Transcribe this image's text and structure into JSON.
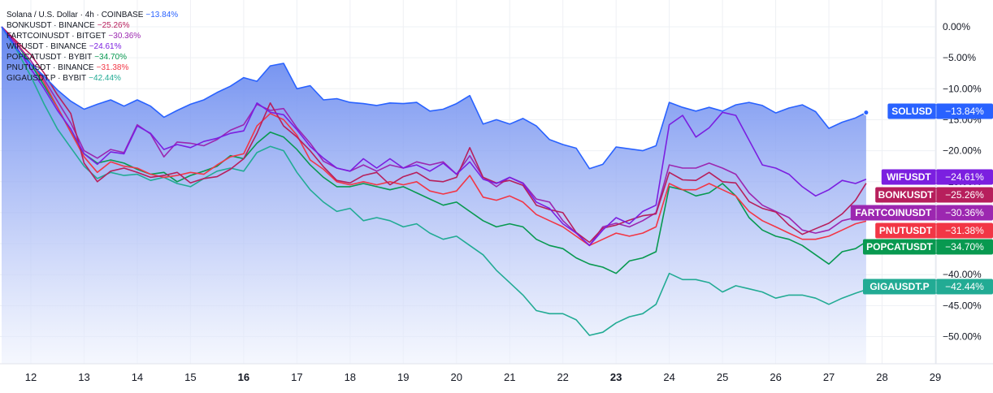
{
  "legend": [
    {
      "label": "Solana / U.S. Dollar · 4h · COINBASE",
      "change": "−13.84%",
      "color": "#2962ff"
    },
    {
      "label": "BONKUSDT · BINANCE",
      "change": "−25.26%",
      "color": "#b71f5c"
    },
    {
      "label": "FARTCOINUSDT · BITGET",
      "change": "−30.36%",
      "color": "#9c27b0"
    },
    {
      "label": "WIFUSDT · BINANCE",
      "change": "−24.61%",
      "color": "#7b1fe0"
    },
    {
      "label": "POPCATUSDT · BYBIT",
      "change": "−34.70%",
      "color": "#089950"
    },
    {
      "label": "PNUTUSDT · BINANCE",
      "change": "−31.38%",
      "color": "#f23645"
    },
    {
      "label": "GIGAUSDT.P · BYBIT",
      "change": "−42.44%",
      "color": "#22ab94"
    }
  ],
  "chart_data": {
    "type": "area",
    "title": "Solana / U.S. Dollar · 4h · COINBASE",
    "ylabel": "",
    "xlabel": "",
    "ylim": [
      -53.5,
      2
    ],
    "y_ticks": [
      "0.00%",
      "−5.00%",
      "−10.00%",
      "−15.00%",
      "−20.00%",
      "−25.00%",
      "−30.00%",
      "−35.00%",
      "−40.00%",
      "−45.00%",
      "−50.00%"
    ],
    "x_ticks": [
      {
        "label": "12",
        "day": 12,
        "bold": false
      },
      {
        "label": "13",
        "day": 13,
        "bold": false
      },
      {
        "label": "14",
        "day": 14,
        "bold": false
      },
      {
        "label": "15",
        "day": 15,
        "bold": false
      },
      {
        "label": "16",
        "day": 16,
        "bold": true
      },
      {
        "label": "17",
        "day": 17,
        "bold": false
      },
      {
        "label": "18",
        "day": 18,
        "bold": false
      },
      {
        "label": "19",
        "day": 19,
        "bold": false
      },
      {
        "label": "20",
        "day": 20,
        "bold": false
      },
      {
        "label": "21",
        "day": 21,
        "bold": false
      },
      {
        "label": "22",
        "day": 22,
        "bold": false
      },
      {
        "label": "23",
        "day": 23,
        "bold": true
      },
      {
        "label": "24",
        "day": 24,
        "bold": false
      },
      {
        "label": "25",
        "day": 25,
        "bold": false
      },
      {
        "label": "26",
        "day": 26,
        "bold": false
      },
      {
        "label": "27",
        "day": 27,
        "bold": false
      },
      {
        "label": "28",
        "day": 28,
        "bold": false
      },
      {
        "label": "29",
        "day": 29,
        "bold": false
      }
    ],
    "xlim": [
      11.45,
      29.45
    ],
    "x": [
      11.45,
      11.75,
      12.0,
      12.25,
      12.5,
      12.75,
      13.0,
      13.25,
      13.5,
      13.75,
      14.0,
      14.25,
      14.5,
      14.75,
      15.0,
      15.25,
      15.5,
      15.75,
      16.0,
      16.25,
      16.5,
      16.75,
      17.0,
      17.25,
      17.5,
      17.75,
      18.0,
      18.25,
      18.5,
      18.75,
      19.0,
      19.25,
      19.5,
      19.75,
      20.0,
      20.25,
      20.5,
      20.75,
      21.0,
      21.25,
      21.5,
      21.75,
      22.0,
      22.25,
      22.5,
      22.75,
      23.0,
      23.25,
      23.5,
      23.75,
      24.0,
      24.25,
      24.5,
      24.75,
      25.0,
      25.25,
      25.5,
      25.75,
      26.0,
      26.25,
      26.5,
      26.75,
      27.0,
      27.25,
      27.5,
      27.7
    ],
    "series": [
      {
        "name": "SOLUSD",
        "color": "#2962ff",
        "area": true,
        "badge": "−13.84%",
        "values": [
          0,
          -3.8,
          -6.0,
          -8.0,
          -10.2,
          -12.0,
          -13.3,
          -12.5,
          -11.8,
          -12.8,
          -11.8,
          -12.8,
          -14.6,
          -13.5,
          -12.5,
          -11.8,
          -10.6,
          -9.6,
          -8.2,
          -8.8,
          -6.3,
          -5.9,
          -10.0,
          -9.5,
          -11.8,
          -11.6,
          -12.2,
          -12.4,
          -12.7,
          -12.3,
          -12.4,
          -12.2,
          -13.6,
          -13.3,
          -12.4,
          -11.1,
          -15.7,
          -15.0,
          -15.7,
          -14.8,
          -16.0,
          -18.2,
          -19.0,
          -19.6,
          -22.9,
          -22.2,
          -19.4,
          -19.7,
          -20.0,
          -19.2,
          -12.2,
          -13.0,
          -13.6,
          -13.0,
          -13.6,
          -12.6,
          -12.2,
          -12.7,
          -13.9,
          -13.1,
          -12.6,
          -13.7,
          -16.4,
          -15.4,
          -14.7,
          -13.84
        ]
      },
      {
        "name": "BONKUSDT",
        "color": "#b71f5c",
        "area": false,
        "badge": "−25.26%",
        "values": [
          0,
          -2.5,
          -4.5,
          -7.5,
          -11.0,
          -14.0,
          -22.0,
          -25.0,
          -23.3,
          -22.8,
          -23.5,
          -24.3,
          -24.0,
          -23.5,
          -25.2,
          -24.5,
          -24.2,
          -23.0,
          -21.3,
          -17.2,
          -12.3,
          -16.0,
          -17.8,
          -20.0,
          -22.6,
          -24.8,
          -25.2,
          -24.0,
          -23.5,
          -25.5,
          -24.2,
          -23.5,
          -24.8,
          -25.0,
          -24.3,
          -19.5,
          -24.3,
          -25.2,
          -24.8,
          -25.6,
          -28.8,
          -29.5,
          -30.0,
          -33.2,
          -34.8,
          -32.5,
          -32.0,
          -31.2,
          -30.5,
          -30.2,
          -23.5,
          -24.7,
          -24.8,
          -23.5,
          -25.0,
          -25.2,
          -28.2,
          -29.3,
          -29.9,
          -32.0,
          -33.5,
          -32.6,
          -31.7,
          -30.2,
          -28.0,
          -25.26
        ]
      },
      {
        "name": "FARTCOINUSDT",
        "color": "#9c27b0",
        "area": false,
        "badge": "−30.36%",
        "values": [
          0,
          -3.0,
          -5.5,
          -8.5,
          -12.0,
          -15.5,
          -20.0,
          -21.2,
          -19.8,
          -20.3,
          -15.8,
          -17.3,
          -21.0,
          -18.6,
          -18.8,
          -19.2,
          -18.2,
          -16.7,
          -15.8,
          -12.5,
          -13.5,
          -13.2,
          -16.3,
          -18.8,
          -21.7,
          -22.8,
          -23.3,
          -22.3,
          -23.3,
          -22.3,
          -22.8,
          -21.8,
          -22.3,
          -21.8,
          -23.8,
          -20.8,
          -24.3,
          -25.8,
          -24.3,
          -25.2,
          -27.8,
          -28.3,
          -31.3,
          -33.3,
          -35.3,
          -32.3,
          -31.7,
          -32.3,
          -31.3,
          -30.0,
          -22.3,
          -22.8,
          -22.8,
          -22.0,
          -22.8,
          -23.8,
          -26.8,
          -28.8,
          -29.8,
          -30.8,
          -32.8,
          -33.3,
          -32.8,
          -31.3,
          -30.8,
          -30.36
        ]
      },
      {
        "name": "WIFUSDT",
        "color": "#7b1fe0",
        "area": false,
        "badge": "−24.61%",
        "values": [
          0,
          -3.5,
          -6.8,
          -10.0,
          -13.5,
          -16.5,
          -20.5,
          -22.2,
          -20.2,
          -20.5,
          -16.0,
          -17.2,
          -19.8,
          -19.0,
          -19.5,
          -18.5,
          -18.0,
          -17.2,
          -16.8,
          -12.3,
          -13.8,
          -14.2,
          -16.6,
          -19.3,
          -21.2,
          -22.8,
          -23.3,
          -21.3,
          -22.8,
          -21.3,
          -22.8,
          -22.3,
          -23.3,
          -22.0,
          -23.8,
          -21.8,
          -24.6,
          -25.3,
          -24.3,
          -25.3,
          -28.3,
          -29.3,
          -31.8,
          -33.3,
          -35.3,
          -32.8,
          -30.8,
          -31.8,
          -29.8,
          -28.8,
          -15.8,
          -14.3,
          -17.8,
          -16.3,
          -13.8,
          -14.3,
          -18.3,
          -22.3,
          -22.8,
          -23.8,
          -25.8,
          -27.3,
          -26.3,
          -24.8,
          -25.3,
          -24.61
        ]
      },
      {
        "name": "POPCATUSDT",
        "color": "#089950",
        "area": false,
        "badge": "−34.70%",
        "values": [
          0,
          -3.0,
          -6.0,
          -9.5,
          -13.0,
          -17.0,
          -20.5,
          -22.0,
          -21.5,
          -22.0,
          -23.0,
          -23.8,
          -23.5,
          -25.0,
          -24.0,
          -23.3,
          -22.5,
          -20.8,
          -21.3,
          -18.8,
          -17.0,
          -17.8,
          -19.8,
          -22.3,
          -24.3,
          -25.8,
          -25.8,
          -25.3,
          -25.8,
          -26.3,
          -25.8,
          -26.8,
          -27.8,
          -28.8,
          -28.3,
          -29.8,
          -31.3,
          -32.3,
          -31.8,
          -32.3,
          -34.3,
          -35.3,
          -35.8,
          -37.3,
          -38.3,
          -38.8,
          -39.8,
          -37.8,
          -37.3,
          -36.3,
          -25.8,
          -26.3,
          -27.3,
          -26.8,
          -25.3,
          -27.3,
          -30.8,
          -32.8,
          -33.8,
          -34.3,
          -35.3,
          -36.8,
          -38.3,
          -36.3,
          -35.8,
          -34.7
        ]
      },
      {
        "name": "PNUTUSDT",
        "color": "#f23645",
        "area": false,
        "badge": "−31.38%",
        "values": [
          0,
          -2.8,
          -5.5,
          -9.0,
          -13.0,
          -17.0,
          -21.0,
          -23.5,
          -21.8,
          -22.5,
          -22.8,
          -23.8,
          -24.3,
          -24.0,
          -23.5,
          -23.8,
          -22.3,
          -21.0,
          -20.5,
          -16.0,
          -14.0,
          -15.0,
          -17.5,
          -21.5,
          -23.0,
          -25.0,
          -25.5,
          -25.0,
          -25.5,
          -25.0,
          -25.5,
          -25.0,
          -26.5,
          -27.0,
          -26.5,
          -24.0,
          -27.5,
          -28.0,
          -27.3,
          -28.3,
          -30.3,
          -31.3,
          -32.3,
          -33.8,
          -35.3,
          -34.3,
          -33.3,
          -33.8,
          -33.3,
          -32.3,
          -25.3,
          -26.3,
          -26.3,
          -25.3,
          -26.3,
          -27.3,
          -29.8,
          -31.3,
          -32.3,
          -33.3,
          -34.3,
          -34.3,
          -33.8,
          -32.8,
          -31.8,
          -31.38
        ]
      },
      {
        "name": "GIGAUSDT.P",
        "color": "#22ab94",
        "area": false,
        "badge": "−42.44%",
        "values": [
          0,
          -4.0,
          -8.0,
          -12.5,
          -16.5,
          -19.5,
          -22.5,
          -24.5,
          -23.5,
          -24.0,
          -23.8,
          -24.8,
          -24.3,
          -25.3,
          -25.8,
          -24.5,
          -23.3,
          -22.8,
          -23.3,
          -20.3,
          -19.3,
          -20.0,
          -23.5,
          -26.3,
          -28.3,
          -29.8,
          -29.3,
          -31.3,
          -30.8,
          -31.3,
          -32.3,
          -31.8,
          -33.3,
          -34.3,
          -33.8,
          -35.3,
          -36.8,
          -39.3,
          -41.3,
          -43.3,
          -45.8,
          -46.3,
          -46.3,
          -47.3,
          -49.8,
          -49.3,
          -47.8,
          -46.8,
          -46.3,
          -44.8,
          -39.8,
          -40.8,
          -40.8,
          -41.3,
          -42.8,
          -41.8,
          -42.3,
          -42.8,
          -43.8,
          -43.3,
          -43.3,
          -43.8,
          -44.8,
          -43.8,
          -43.0,
          -42.44
        ]
      }
    ]
  }
}
